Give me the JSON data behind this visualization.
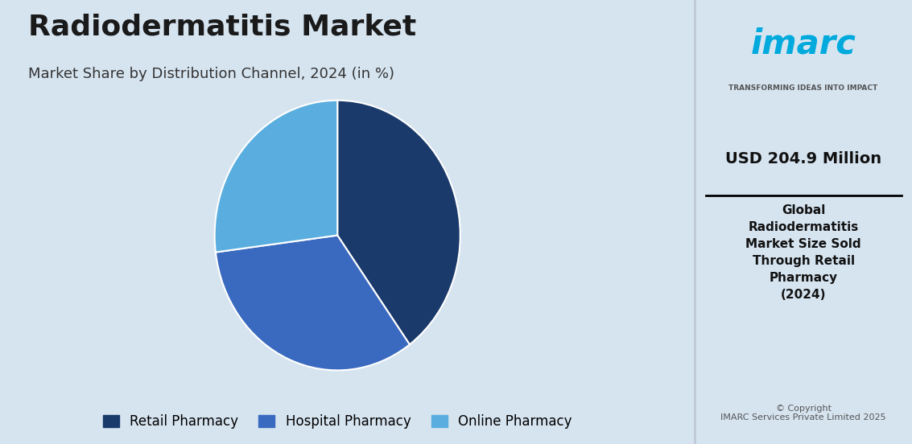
{
  "title": "Radiodermatitis Market",
  "subtitle": "Market Share by Distribution Channel, 2024 (in %)",
  "slices": [
    {
      "label": "Retail Pharmacy",
      "value": 40.0,
      "color": "#1a3a6b"
    },
    {
      "label": "Hospital Pharmacy",
      "value": 33.0,
      "color": "#3a6abf"
    },
    {
      "label": "Online Pharmacy",
      "value": 27.0,
      "color": "#5aaedf"
    }
  ],
  "start_angle": 90,
  "bg_color_left": "#d6e4f0",
  "bg_color_right": "#ffffff",
  "title_fontsize": 26,
  "subtitle_fontsize": 13,
  "legend_fontsize": 12,
  "right_value": "USD 204.9 Million",
  "right_label": "Global\nRadiodermatitis\nMarket Size Sold\nThrough Retail\nPharmacy\n(2024)",
  "copyright": "© Copyright\nIMARC Services Private Limited 2025",
  "imarc_tagline": "TRANSFORMING IDEAS INTO IMPACT",
  "divider_color": "#000000"
}
